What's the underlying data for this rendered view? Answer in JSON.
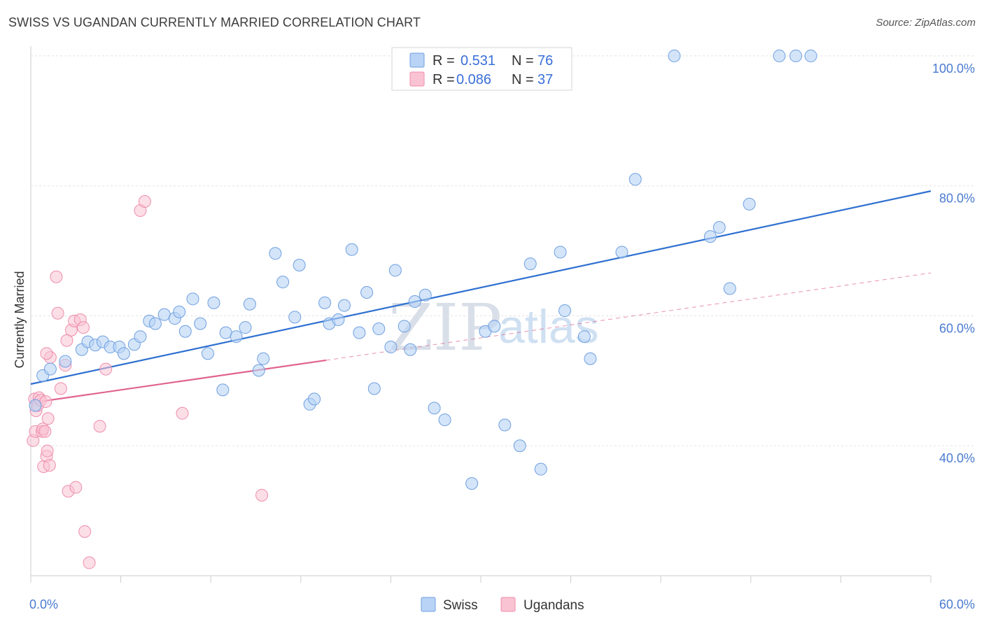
{
  "title": "SWISS VS UGANDAN CURRENTLY MARRIED CORRELATION CHART",
  "source": "Source: ZipAtlas.com",
  "watermark": {
    "zip": "ZIP",
    "atlas": "atlas"
  },
  "colors": {
    "swiss_fill": "#b8d3f5",
    "swiss_stroke": "#6f9fe0",
    "swiss_line": "#2e70d0",
    "ugandans_fill": "#f9c3d3",
    "ugandans_stroke": "#ee8eac",
    "ugandans_line": "#e0628f",
    "grid": "#e3e3e3",
    "tick_text": "#4a7bd0"
  },
  "legend": {
    "row1": {
      "r_label": "R =",
      "r_value": "0.531",
      "n_label": "N =",
      "n_value": "76"
    },
    "row2": {
      "r_label": "R =",
      "r_value": "0.086",
      "n_label": "N =",
      "n_value": "37"
    }
  },
  "chart_data": {
    "type": "scatter",
    "title": "SWISS VS UGANDAN CURRENTLY MARRIED CORRELATION CHART",
    "xlabel": "",
    "ylabel": "Currently Married",
    "xlim": [
      0,
      60
    ],
    "ylim": [
      20,
      101.5
    ],
    "x_tick_labels": [
      "0.0%",
      "60.0%"
    ],
    "y_ticks": [
      {
        "value": 40,
        "label": "40.0%"
      },
      {
        "value": 60,
        "label": "60.0%"
      },
      {
        "value": 80,
        "label": "80.0%"
      },
      {
        "value": 100,
        "label": "100.0%"
      }
    ],
    "series": [
      {
        "name": "Swiss",
        "R": 0.531,
        "N": 76,
        "trend": {
          "x0": 0,
          "y0": 49.5,
          "x1": 60,
          "y1": 79.2,
          "dashed_from": null
        },
        "points": [
          [
            0.3,
            46.2
          ],
          [
            0.8,
            50.8
          ],
          [
            1.3,
            51.8
          ],
          [
            2.3,
            53.0
          ],
          [
            3.4,
            54.8
          ],
          [
            3.8,
            56.0
          ],
          [
            4.3,
            55.5
          ],
          [
            4.8,
            56.0
          ],
          [
            5.3,
            55.2
          ],
          [
            5.9,
            55.2
          ],
          [
            6.2,
            54.2
          ],
          [
            6.9,
            55.6
          ],
          [
            7.3,
            56.8
          ],
          [
            7.9,
            59.2
          ],
          [
            8.3,
            58.8
          ],
          [
            8.9,
            60.2
          ],
          [
            9.6,
            59.6
          ],
          [
            9.9,
            60.6
          ],
          [
            10.3,
            57.6
          ],
          [
            10.8,
            62.6
          ],
          [
            11.3,
            58.8
          ],
          [
            11.8,
            54.2
          ],
          [
            12.2,
            62.0
          ],
          [
            12.8,
            48.6
          ],
          [
            13.0,
            57.4
          ],
          [
            13.7,
            56.8
          ],
          [
            14.3,
            58.2
          ],
          [
            14.6,
            61.8
          ],
          [
            15.2,
            51.6
          ],
          [
            15.5,
            53.4
          ],
          [
            16.3,
            69.6
          ],
          [
            16.8,
            65.2
          ],
          [
            17.6,
            59.8
          ],
          [
            17.9,
            67.8
          ],
          [
            18.6,
            46.4
          ],
          [
            18.9,
            47.2
          ],
          [
            19.6,
            62.0
          ],
          [
            19.9,
            58.8
          ],
          [
            20.5,
            59.4
          ],
          [
            20.9,
            61.6
          ],
          [
            21.4,
            70.2
          ],
          [
            21.9,
            57.4
          ],
          [
            22.4,
            63.6
          ],
          [
            22.9,
            48.8
          ],
          [
            23.2,
            58.0
          ],
          [
            24.0,
            55.2
          ],
          [
            24.3,
            67.0
          ],
          [
            24.9,
            58.4
          ],
          [
            25.3,
            54.8
          ],
          [
            25.6,
            62.2
          ],
          [
            26.3,
            63.2
          ],
          [
            26.9,
            45.8
          ],
          [
            27.6,
            44.0
          ],
          [
            29.4,
            34.2
          ],
          [
            30.3,
            57.6
          ],
          [
            30.9,
            58.4
          ],
          [
            31.6,
            43.2
          ],
          [
            32.6,
            40.0
          ],
          [
            33.3,
            68.0
          ],
          [
            34.0,
            36.4
          ],
          [
            35.3,
            69.8
          ],
          [
            35.6,
            60.8
          ],
          [
            36.9,
            56.8
          ],
          [
            37.3,
            53.4
          ],
          [
            39.4,
            69.8
          ],
          [
            40.3,
            81.0
          ],
          [
            42.9,
            100.0
          ],
          [
            45.3,
            72.2
          ],
          [
            45.9,
            73.6
          ],
          [
            46.6,
            64.2
          ],
          [
            47.9,
            77.2
          ],
          [
            49.9,
            100.0
          ],
          [
            51.0,
            100.0
          ],
          [
            52.0,
            100.0
          ]
        ]
      },
      {
        "name": "Ugandans",
        "R": 0.086,
        "N": 37,
        "trend": {
          "x0": 0,
          "y0": 46.6,
          "x1": 60,
          "y1": 66.6,
          "solid_until_x": 19.7
        },
        "points": [
          [
            0.15,
            40.8
          ],
          [
            0.25,
            47.2
          ],
          [
            0.3,
            42.2
          ],
          [
            0.35,
            45.4
          ],
          [
            0.45,
            46.2
          ],
          [
            0.55,
            47.4
          ],
          [
            0.65,
            47.0
          ],
          [
            0.75,
            42.2
          ],
          [
            0.8,
            42.6
          ],
          [
            0.85,
            36.8
          ],
          [
            0.95,
            42.2
          ],
          [
            1.05,
            38.4
          ],
          [
            1.1,
            39.2
          ],
          [
            1.15,
            44.2
          ],
          [
            1.25,
            37.0
          ],
          [
            1.3,
            53.6
          ],
          [
            1.05,
            54.2
          ],
          [
            1.8,
            60.4
          ],
          [
            2.0,
            48.8
          ],
          [
            1.7,
            66.0
          ],
          [
            2.3,
            52.4
          ],
          [
            2.4,
            56.2
          ],
          [
            2.5,
            33.0
          ],
          [
            2.7,
            57.8
          ],
          [
            2.9,
            59.2
          ],
          [
            3.0,
            33.6
          ],
          [
            3.3,
            59.4
          ],
          [
            3.5,
            58.2
          ],
          [
            3.6,
            26.8
          ],
          [
            3.9,
            22.0
          ],
          [
            4.6,
            43.0
          ],
          [
            5.0,
            51.8
          ],
          [
            7.3,
            76.2
          ],
          [
            7.6,
            77.6
          ],
          [
            10.1,
            45.0
          ],
          [
            15.4,
            32.4
          ],
          [
            1.0,
            46.8
          ]
        ]
      }
    ]
  },
  "bottom_legend": {
    "swiss": "Swiss",
    "ugandans": "Ugandans"
  }
}
